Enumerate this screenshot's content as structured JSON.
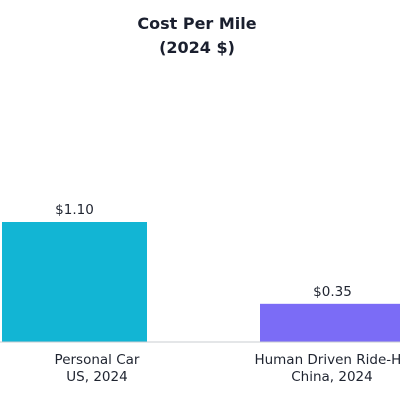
{
  "chart_data": {
    "type": "bar",
    "title": "Cost Per Mile",
    "subtitle": "(2024 $)",
    "categories": [
      [
        "Personal Car",
        "US, 2024"
      ],
      [
        "Human Driven Ride-Ha",
        "China, 2024"
      ]
    ],
    "values": [
      1.1,
      0.35
    ],
    "value_labels": [
      "$1.10",
      "$0.35"
    ],
    "colors": [
      "#12b5d4",
      "#7b6cf6"
    ],
    "ylim": [
      0,
      2.5
    ],
    "grid": false,
    "legend": "none"
  }
}
